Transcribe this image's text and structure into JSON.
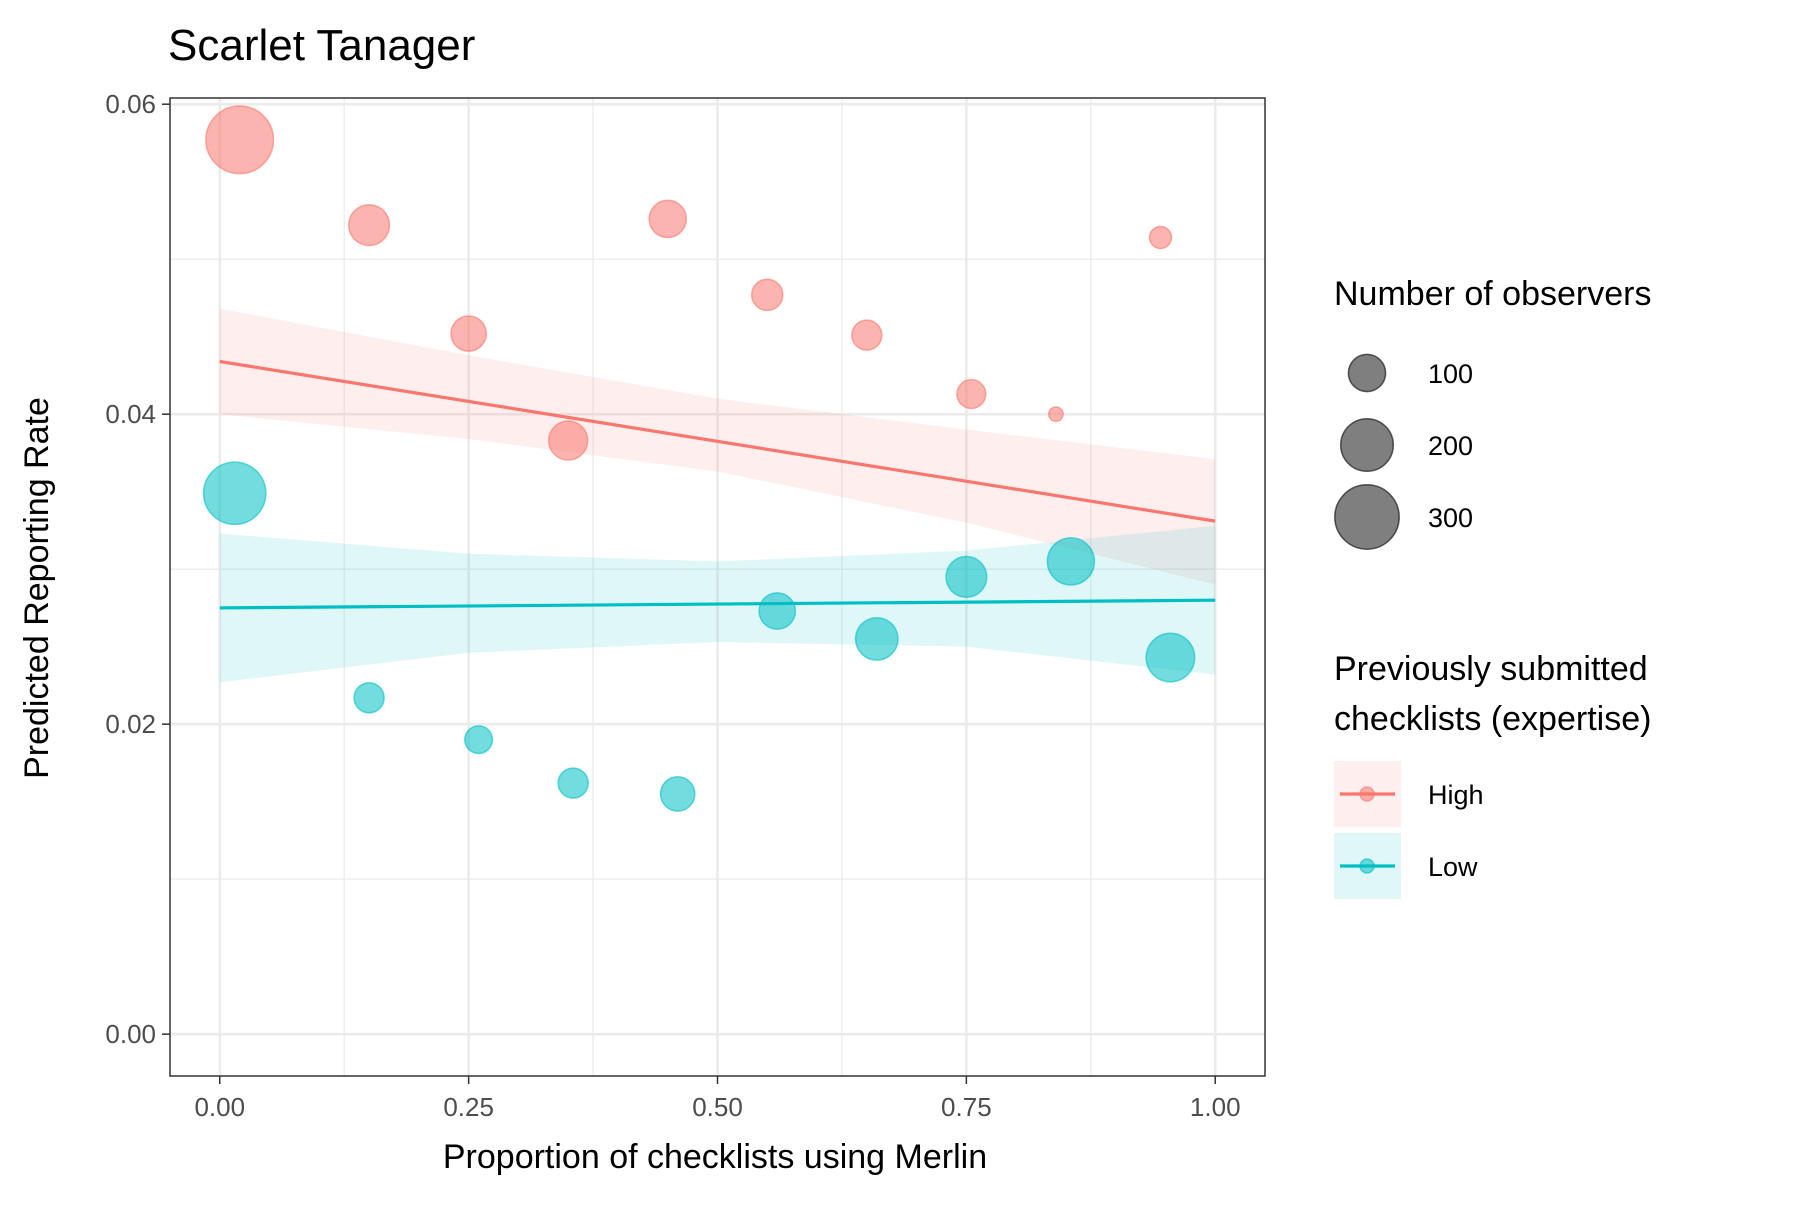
{
  "chart_data": {
    "type": "scatter",
    "title": "Scarlet Tanager",
    "xlabel": "Proportion of checklists using Merlin",
    "ylabel": "Predicted Reporting Rate",
    "xlim": [
      -0.05,
      1.05
    ],
    "ylim": [
      -0.0027,
      0.0604
    ],
    "x_ticks": [
      0,
      0.25,
      0.5,
      0.75,
      1.0
    ],
    "x_tick_labels": [
      "0.00",
      "0.25",
      "0.50",
      "0.75",
      "1.00"
    ],
    "y_ticks": [
      0,
      0.02,
      0.04,
      0.06
    ],
    "y_tick_labels": [
      "0.00",
      "0.02",
      "0.04",
      "0.06"
    ],
    "grid": true,
    "legend_position": "right",
    "size_legend": {
      "title": "Number of observers",
      "entries": [
        {
          "label": "100",
          "value": 100
        },
        {
          "label": "200",
          "value": 200
        },
        {
          "label": "300",
          "value": 300
        }
      ]
    },
    "color_legend": {
      "title_lines": [
        "Previously submitted",
        "checklists (expertise)"
      ]
    },
    "series": [
      {
        "name": "High",
        "color": "#F8766D",
        "points": [
          {
            "x": 0.02,
            "y": 0.0577,
            "n": 330
          },
          {
            "x": 0.15,
            "y": 0.0522,
            "n": 120
          },
          {
            "x": 0.25,
            "y": 0.0452,
            "n": 90
          },
          {
            "x": 0.35,
            "y": 0.0383,
            "n": 110
          },
          {
            "x": 0.45,
            "y": 0.0526,
            "n": 100
          },
          {
            "x": 0.55,
            "y": 0.0477,
            "n": 70
          },
          {
            "x": 0.65,
            "y": 0.0451,
            "n": 65
          },
          {
            "x": 0.755,
            "y": 0.0413,
            "n": 60
          },
          {
            "x": 0.84,
            "y": 0.04,
            "n": 15
          },
          {
            "x": 0.945,
            "y": 0.0514,
            "n": 35
          }
        ],
        "fit": {
          "x": [
            0,
            1
          ],
          "y": [
            0.0434,
            0.0331
          ]
        },
        "ci_x": [
          0,
          0.25,
          0.5,
          0.75,
          1.0
        ],
        "ci_upper": [
          0.0468,
          0.0438,
          0.041,
          0.039,
          0.0371
        ],
        "ci_lower": [
          0.04,
          0.0384,
          0.0363,
          0.033,
          0.029
        ]
      },
      {
        "name": "Low",
        "color": "#00BFC4",
        "points": [
          {
            "x": 0.015,
            "y": 0.0349,
            "n": 280
          },
          {
            "x": 0.15,
            "y": 0.0217,
            "n": 65
          },
          {
            "x": 0.26,
            "y": 0.019,
            "n": 55
          },
          {
            "x": 0.355,
            "y": 0.0162,
            "n": 65
          },
          {
            "x": 0.46,
            "y": 0.0155,
            "n": 85
          },
          {
            "x": 0.56,
            "y": 0.0273,
            "n": 95
          },
          {
            "x": 0.66,
            "y": 0.0255,
            "n": 130
          },
          {
            "x": 0.75,
            "y": 0.0295,
            "n": 120
          },
          {
            "x": 0.855,
            "y": 0.0305,
            "n": 160
          },
          {
            "x": 0.955,
            "y": 0.0243,
            "n": 170
          }
        ],
        "fit": {
          "x": [
            0,
            1
          ],
          "y": [
            0.0275,
            0.028
          ]
        },
        "ci_x": [
          0,
          0.25,
          0.5,
          0.75,
          1.0
        ],
        "ci_upper": [
          0.0323,
          0.031,
          0.0305,
          0.0312,
          0.0328
        ],
        "ci_lower": [
          0.0227,
          0.0246,
          0.0253,
          0.025,
          0.0232
        ]
      }
    ]
  }
}
